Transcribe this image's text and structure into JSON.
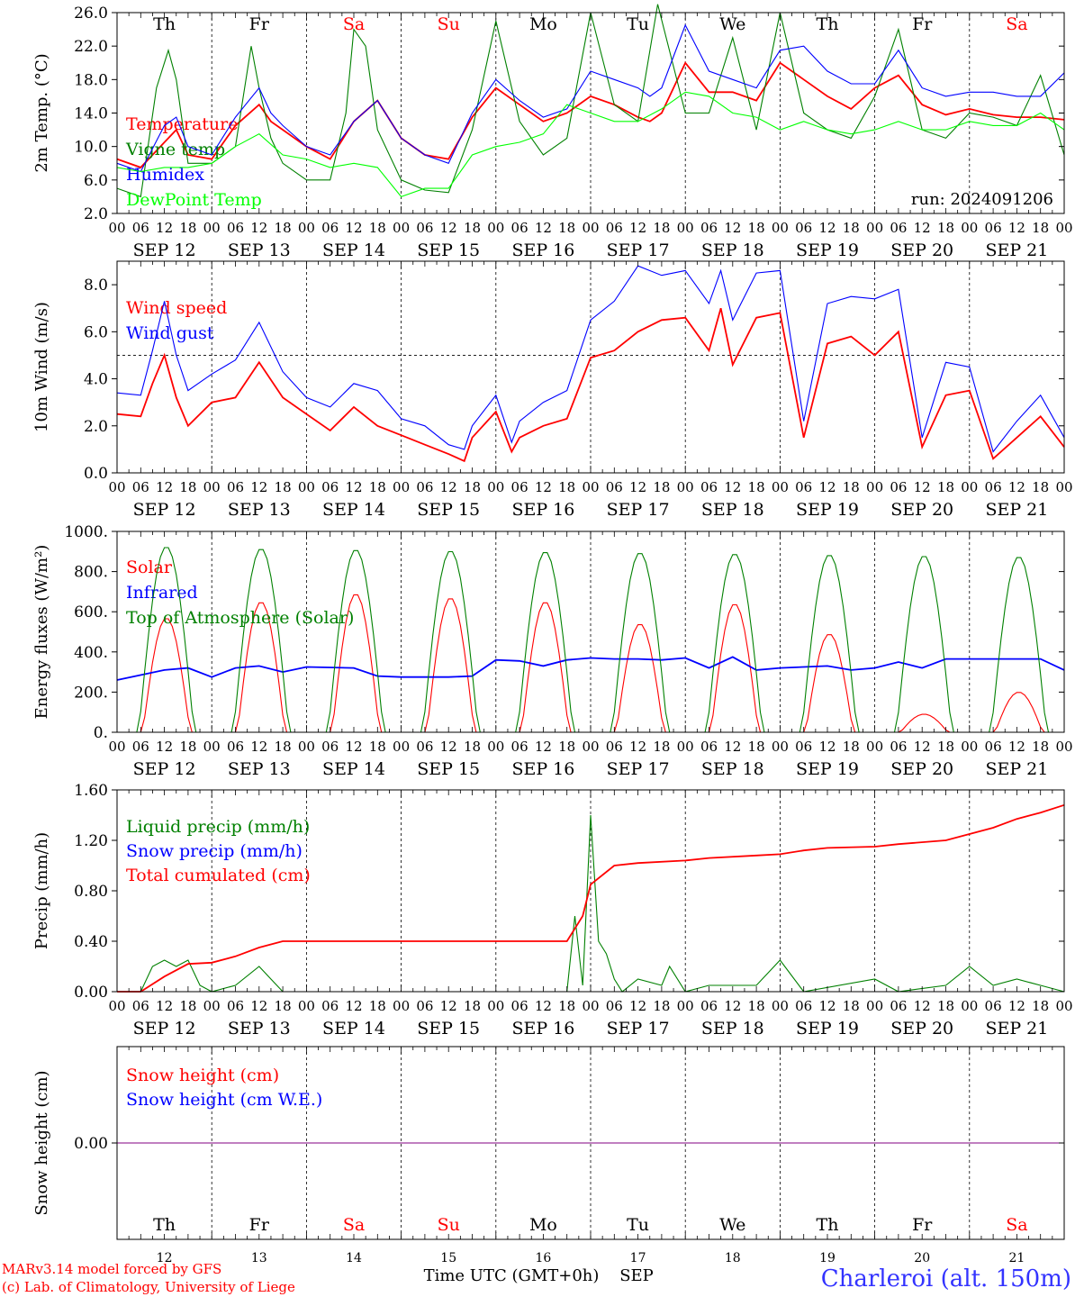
{
  "days": {
    "abbr": [
      "Th",
      "Fr",
      "Sa",
      "Su",
      "Mo",
      "Tu",
      "We",
      "Th",
      "Fr",
      "Sa"
    ],
    "abbr_colors": [
      "#000000",
      "#000000",
      "#ff0000",
      "#ff0000",
      "#000000",
      "#000000",
      "#000000",
      "#000000",
      "#000000",
      "#ff0000"
    ],
    "dates": [
      "SEP 12",
      "SEP 13",
      "SEP 14",
      "SEP 15",
      "SEP 16",
      "SEP 17",
      "SEP 18",
      "SEP 19",
      "SEP 20",
      "SEP 21"
    ],
    "numbers": [
      "12",
      "13",
      "14",
      "15",
      "16",
      "17",
      "18",
      "19",
      "20",
      "21"
    ],
    "hour_ticks": [
      "00",
      "06",
      "12",
      "18"
    ],
    "end_tick": "00"
  },
  "footer": {
    "model": "MARv3.14 model forced by GFS",
    "credit": "(c) Lab. of Climatology, University of Liege",
    "xlabel": "Time UTC (GMT+0h)",
    "month": "SEP",
    "station": "Charleroi (alt. 150m)"
  },
  "chart_data": [
    {
      "type": "line",
      "id": "temp",
      "ylabel": "2m Temp. (°C)",
      "ylim": [
        2,
        26
      ],
      "yticks": [
        "2.0",
        "6.0",
        "10.0",
        "14.0",
        "18.0",
        "22.0",
        "26.0"
      ],
      "grid": "vertical day lines (dashed)",
      "legend_placement": "left",
      "annotation": "run: 2024091206",
      "series": [
        {
          "name": "Temperature",
          "color": "#ff0000",
          "x": [
            0,
            6,
            12,
            15,
            18,
            24,
            30,
            36,
            39,
            42,
            48,
            54,
            60,
            66,
            72,
            78,
            84,
            90,
            96,
            102,
            108,
            114,
            120,
            126,
            132,
            135,
            138,
            144,
            150,
            156,
            162,
            168,
            174,
            180,
            186,
            192,
            198,
            204,
            210,
            216,
            222,
            228,
            234,
            240
          ],
          "y": [
            8.5,
            7.5,
            10.5,
            12,
            9,
            8.5,
            12.5,
            15,
            13,
            12,
            10,
            8.5,
            13,
            15.5,
            11,
            9,
            8.5,
            13.5,
            17,
            15,
            13,
            14,
            16,
            15,
            13.5,
            13,
            14,
            20,
            16.5,
            16.5,
            15.5,
            20,
            18,
            16,
            14.5,
            17,
            18.5,
            15,
            13.8,
            14.5,
            13.8,
            13.5,
            13.5,
            13.2
          ]
        },
        {
          "name": "Vigne temp",
          "color": "#008000",
          "x": [
            0,
            6,
            10,
            13,
            15,
            18,
            24,
            30,
            34,
            36,
            39,
            42,
            48,
            54,
            58,
            60,
            63,
            66,
            72,
            78,
            84,
            90,
            96,
            102,
            108,
            114,
            120,
            126,
            132,
            137,
            144,
            150,
            156,
            162,
            168,
            174,
            180,
            186,
            192,
            198,
            204,
            210,
            216,
            222,
            228,
            234,
            240
          ],
          "y": [
            5,
            4,
            17,
            21.5,
            18,
            8,
            8,
            10,
            22,
            17,
            11,
            8,
            6,
            6,
            14,
            24,
            22,
            12,
            6,
            4.8,
            4.5,
            12,
            25,
            13,
            9,
            11,
            26,
            15,
            13,
            27,
            14,
            14,
            23,
            12,
            26,
            14,
            12,
            11,
            16,
            24,
            12,
            11,
            14,
            13.5,
            12.5,
            18.5,
            9
          ]
        },
        {
          "name": "Humidex",
          "color": "#0000ff",
          "x": [
            0,
            6,
            12,
            15,
            18,
            24,
            30,
            36,
            39,
            42,
            48,
            54,
            60,
            66,
            72,
            78,
            84,
            90,
            96,
            102,
            108,
            114,
            120,
            126,
            132,
            135,
            138,
            144,
            150,
            156,
            162,
            168,
            174,
            180,
            186,
            192,
            198,
            204,
            210,
            216,
            222,
            228,
            234,
            240
          ],
          "y": [
            8,
            7,
            12.5,
            13.5,
            10,
            9,
            13.5,
            17,
            14,
            12.5,
            10,
            9,
            13,
            15.5,
            11,
            9,
            8,
            14,
            18,
            15.5,
            13.5,
            14.5,
            19,
            18,
            17,
            16,
            17,
            24.5,
            19,
            18,
            17,
            21.5,
            22,
            19,
            17.5,
            17.5,
            21.5,
            17,
            16,
            16.5,
            16.5,
            16,
            16,
            18.8
          ]
        },
        {
          "name": "DewPoint Temp",
          "color": "#00ff00",
          "x": [
            0,
            6,
            12,
            18,
            24,
            30,
            36,
            42,
            48,
            54,
            60,
            66,
            72,
            78,
            84,
            90,
            96,
            102,
            108,
            114,
            120,
            126,
            132,
            138,
            144,
            150,
            156,
            162,
            168,
            174,
            180,
            186,
            192,
            198,
            204,
            210,
            216,
            222,
            228,
            234,
            240
          ],
          "y": [
            7.5,
            7,
            7.5,
            7.5,
            8,
            10,
            11.5,
            9,
            8.5,
            7.5,
            8,
            7.5,
            4,
            5,
            5,
            9,
            10,
            10.5,
            11.5,
            15,
            14,
            13,
            13,
            14.5,
            16.5,
            16,
            14,
            13.5,
            12,
            13,
            12,
            11.5,
            12,
            13,
            12,
            12,
            13,
            12.5,
            12.5,
            14,
            12
          ]
        }
      ]
    },
    {
      "type": "line",
      "id": "wind",
      "ylabel": "10m Wind (m/s)",
      "ylim": [
        0,
        9
      ],
      "yticks": [
        "0.0",
        "2.0",
        "4.0",
        "6.0",
        "8.0"
      ],
      "reference_line": 5,
      "grid": "vertical day lines (dashed)",
      "legend_placement": "left",
      "series": [
        {
          "name": "Wind speed",
          "color": "#ff0000",
          "x": [
            0,
            6,
            9,
            12,
            15,
            18,
            24,
            30,
            36,
            42,
            48,
            54,
            60,
            66,
            72,
            78,
            84,
            88,
            90,
            96,
            100,
            102,
            108,
            114,
            120,
            126,
            132,
            138,
            144,
            150,
            153,
            156,
            162,
            168,
            174,
            180,
            186,
            192,
            198,
            204,
            210,
            216,
            222,
            228,
            234,
            240
          ],
          "y": [
            2.5,
            2.4,
            3.8,
            5,
            3.2,
            2,
            3,
            3.2,
            4.7,
            3.2,
            2.5,
            1.8,
            2.8,
            2,
            1.6,
            1.2,
            0.8,
            0.5,
            1.5,
            2.6,
            0.9,
            1.5,
            2,
            2.3,
            4.9,
            5.2,
            6,
            6.5,
            6.6,
            5.2,
            7,
            4.6,
            6.6,
            6.8,
            1.5,
            5.5,
            5.8,
            5,
            6,
            1.1,
            3.3,
            3.5,
            0.6,
            1.5,
            2.4,
            1.1
          ]
        },
        {
          "name": "Wind gust",
          "color": "#0000ff",
          "x": [
            0,
            6,
            9,
            12,
            15,
            18,
            24,
            30,
            36,
            42,
            48,
            54,
            60,
            66,
            72,
            78,
            84,
            88,
            90,
            96,
            100,
            102,
            108,
            114,
            120,
            126,
            132,
            138,
            144,
            150,
            153,
            156,
            162,
            168,
            174,
            180,
            186,
            192,
            198,
            204,
            210,
            216,
            222,
            228,
            234,
            240
          ],
          "y": [
            3.4,
            3.3,
            5.2,
            7.3,
            5,
            3.5,
            4.2,
            4.8,
            6.4,
            4.3,
            3.2,
            2.8,
            3.8,
            3.5,
            2.3,
            2,
            1.2,
            1,
            2,
            3.3,
            1.3,
            2.2,
            3,
            3.5,
            6.5,
            7.3,
            8.8,
            8.4,
            8.6,
            7.2,
            8.6,
            6.5,
            8.5,
            8.6,
            2.2,
            7.2,
            7.5,
            7.4,
            7.8,
            1.5,
            4.7,
            4.5,
            0.9,
            2.2,
            3.3,
            1.5
          ]
        }
      ]
    },
    {
      "type": "line",
      "id": "energy",
      "ylabel": "Energy fluxes (W/m²)",
      "ylim": [
        0,
        1000
      ],
      "yticks": [
        "0.",
        "200.",
        "400.",
        "600.",
        "800.",
        "1000."
      ],
      "grid": "vertical day lines (dashed)",
      "legend_placement": "left",
      "series": [
        {
          "name": "Solar",
          "color": "#ff0000",
          "peaks": [
            570,
            650,
            690,
            670,
            650,
            540,
            640,
            490,
            90,
            200
          ],
          "width_h": 6
        },
        {
          "name": "Infrared",
          "color": "#0000ff",
          "x": [
            0,
            12,
            18,
            24,
            30,
            36,
            42,
            48,
            60,
            66,
            72,
            84,
            90,
            96,
            102,
            108,
            114,
            120,
            126,
            132,
            138,
            144,
            150,
            156,
            162,
            168,
            174,
            180,
            186,
            192,
            198,
            204,
            210,
            216,
            222,
            228,
            234,
            240
          ],
          "y": [
            260,
            310,
            320,
            275,
            320,
            330,
            300,
            325,
            320,
            280,
            275,
            275,
            280,
            360,
            355,
            330,
            360,
            370,
            365,
            365,
            360,
            370,
            320,
            375,
            310,
            320,
            325,
            330,
            310,
            320,
            350,
            320,
            365,
            365,
            365,
            365,
            365,
            310
          ]
        },
        {
          "name": "Top of Atmosphere (Solar)",
          "color": "#008000",
          "peaks": [
            925,
            915,
            910,
            905,
            900,
            895,
            890,
            885,
            880,
            875
          ],
          "width_h": 7
        }
      ]
    },
    {
      "type": "line",
      "id": "precip",
      "ylabel": "Precip (mm/h)",
      "ylim": [
        0,
        1.6
      ],
      "yticks": [
        "0.00",
        "0.40",
        "0.80",
        "1.20",
        "1.60"
      ],
      "grid": "vertical day lines (dashed)",
      "legend_placement": "left",
      "series": [
        {
          "name": "Liquid precip (mm/h)",
          "color": "#008000",
          "x": [
            0,
            6,
            9,
            12,
            15,
            18,
            21,
            24,
            30,
            36,
            39,
            42,
            48,
            96,
            114,
            116,
            118,
            120,
            122,
            124,
            126,
            128,
            132,
            138,
            140,
            144,
            150,
            162,
            168,
            174,
            192,
            198,
            210,
            216,
            222,
            228,
            234,
            240
          ],
          "y": [
            0,
            0,
            0.2,
            0.25,
            0.2,
            0.25,
            0.05,
            0,
            0.05,
            0.2,
            0.1,
            0,
            0,
            0,
            0,
            0.6,
            0.05,
            1.4,
            0.4,
            0.3,
            0.1,
            0,
            0.1,
            0.05,
            0.2,
            0,
            0.05,
            0.05,
            0.25,
            0,
            0.1,
            0,
            0.05,
            0.2,
            0.05,
            0.1,
            0.05,
            0
          ]
        },
        {
          "name": "Snow precip (mm/h)",
          "color": "#0000ff",
          "x": [],
          "y": []
        },
        {
          "name": "Total cumulated (cm)",
          "color": "#ff0000",
          "x": [
            0,
            6,
            12,
            18,
            24,
            30,
            36,
            42,
            48,
            108,
            114,
            118,
            120,
            126,
            132,
            144,
            150,
            162,
            168,
            174,
            180,
            192,
            198,
            210,
            216,
            222,
            228,
            234,
            240
          ],
          "y": [
            0,
            0,
            0.12,
            0.22,
            0.23,
            0.28,
            0.35,
            0.4,
            0.4,
            0.4,
            0.4,
            0.6,
            0.85,
            1.0,
            1.02,
            1.04,
            1.06,
            1.08,
            1.09,
            1.12,
            1.14,
            1.15,
            1.17,
            1.2,
            1.25,
            1.3,
            1.37,
            1.42,
            1.48
          ]
        }
      ]
    },
    {
      "type": "line",
      "id": "snow",
      "ylabel": "Snow height (cm)",
      "ylim": [
        -1,
        1
      ],
      "yticks": [
        "0.00"
      ],
      "grid": "vertical day lines (dashed)",
      "legend_placement": "left",
      "series": [
        {
          "name": "Snow height (cm)",
          "color": "#ff0000",
          "x": [
            0,
            240
          ],
          "y": [
            0,
            0
          ]
        },
        {
          "name": "Snow height (cm W.E.)",
          "color": "#0000ff",
          "x": [
            0,
            240
          ],
          "y": [
            0,
            0
          ]
        }
      ]
    }
  ]
}
